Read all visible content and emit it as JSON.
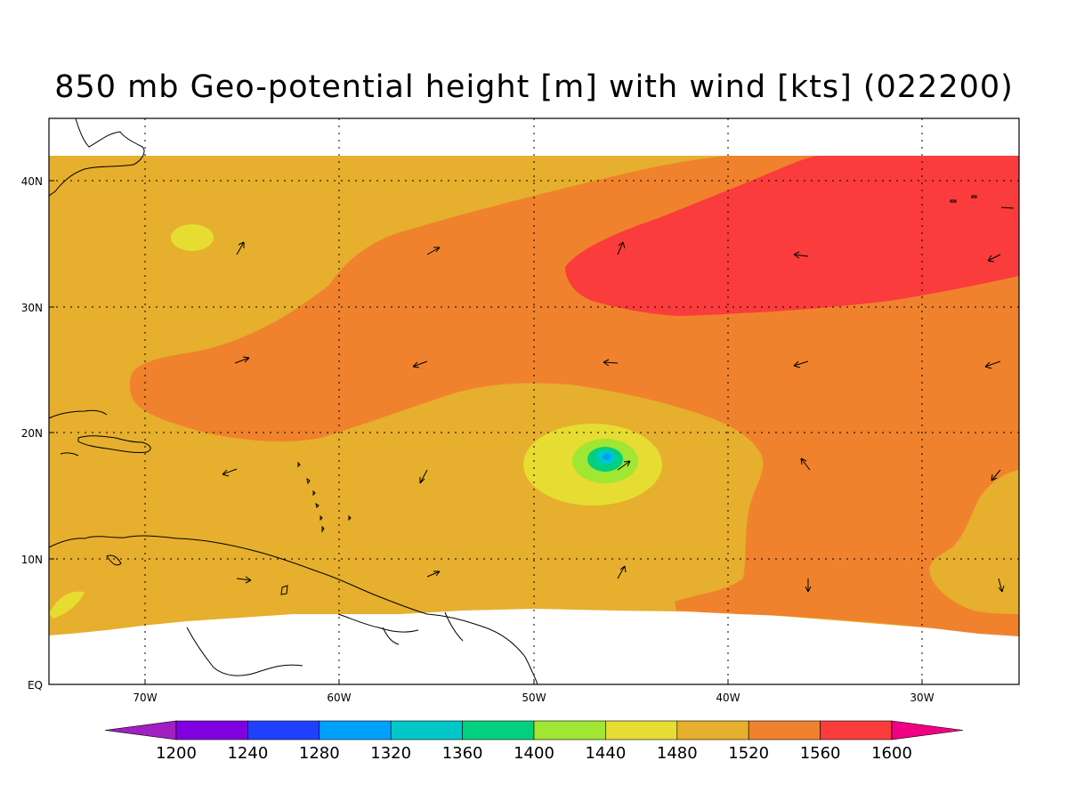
{
  "title": "850 mb Geo-potential height [m] with wind [kts] (022200)",
  "lon_ticks": [
    "70W",
    "60W",
    "50W",
    "40W",
    "30W"
  ],
  "lat_ticks": [
    "40N",
    "30N",
    "20N",
    "10N",
    "EQ"
  ],
  "colorbar": {
    "levels": [
      "1200",
      "1240",
      "1280",
      "1320",
      "1360",
      "1400",
      "1440",
      "1480",
      "1520",
      "1560",
      "1600"
    ],
    "colors": [
      "#a020c0",
      "#8000e0",
      "#2040ff",
      "#00a0ff",
      "#00c8c8",
      "#00d080",
      "#a0e632",
      "#e6dc32",
      "#e6af2d",
      "#f0822d",
      "#fa3c3c",
      "#f00082"
    ]
  },
  "field_colors": {
    "c1440": "#a0e632",
    "c1480": "#e6dc32",
    "c1520": "#e6af2d",
    "c1560": "#f0822d",
    "c1600": "#fa3c3c",
    "c1400": "#00d080",
    "c1360": "#00c8c8",
    "c1320": "#00a0ff"
  }
}
